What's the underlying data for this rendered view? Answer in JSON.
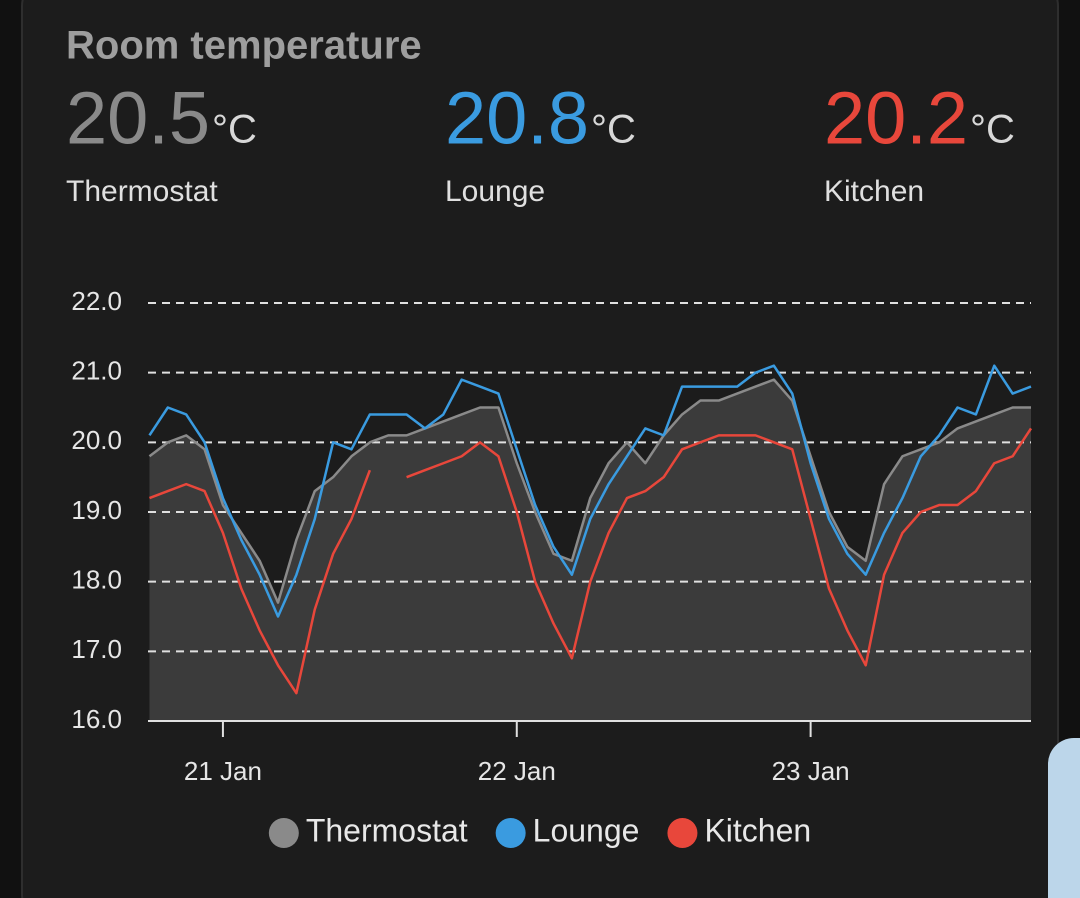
{
  "header": {
    "title": "Room temperature",
    "entities": [
      {
        "value": 20.5,
        "unit": "°C",
        "name": "Thermostat"
      },
      {
        "value": 20.8,
        "unit": "°C",
        "name": "Lounge"
      },
      {
        "value": 20.2,
        "unit": "°C",
        "name": "Kitchen"
      }
    ]
  },
  "chart_data": {
    "type": "line",
    "x": [
      20.75,
      20.8125,
      20.875,
      20.9375,
      21,
      21.0625,
      21.125,
      21.1875,
      21.25,
      21.3125,
      21.375,
      21.4375,
      21.5,
      21.5625,
      21.625,
      21.6875,
      21.75,
      21.8125,
      21.875,
      21.9375,
      22,
      22.0625,
      22.125,
      22.1875,
      22.25,
      22.3125,
      22.375,
      22.4375,
      22.5,
      22.5625,
      22.625,
      22.6875,
      22.75,
      22.8125,
      22.875,
      22.9375,
      23,
      23.0625,
      23.125,
      23.1875,
      23.25,
      23.3125,
      23.375,
      23.4375,
      23.5,
      23.5625,
      23.625,
      23.6875,
      23.75
    ],
    "series": [
      {
        "name": "Thermostat",
        "color": "#8a8a8a",
        "fill": "#3b3b3b",
        "values": [
          19.8,
          20.0,
          20.1,
          19.9,
          19.1,
          18.7,
          18.3,
          17.7,
          18.6,
          19.3,
          19.5,
          19.8,
          20.0,
          20.1,
          20.1,
          20.2,
          20.3,
          20.4,
          20.5,
          20.5,
          19.7,
          19.0,
          18.4,
          18.3,
          19.2,
          19.7,
          20.0,
          19.7,
          20.1,
          20.4,
          20.6,
          20.6,
          20.7,
          20.8,
          20.9,
          20.6,
          19.8,
          19.0,
          18.5,
          18.3,
          19.4,
          19.8,
          19.9,
          20.0,
          20.2,
          20.3,
          20.4,
          20.5,
          20.5
        ]
      },
      {
        "name": "Lounge",
        "color": "#3a9be0",
        "values": [
          20.1,
          20.5,
          20.4,
          20.0,
          19.2,
          18.6,
          18.1,
          17.5,
          18.1,
          18.9,
          20.0,
          19.9,
          20.4,
          20.4,
          20.4,
          20.2,
          20.4,
          20.9,
          20.8,
          20.7,
          19.9,
          19.1,
          18.5,
          18.1,
          18.9,
          19.4,
          19.8,
          20.2,
          20.1,
          20.8,
          20.8,
          20.8,
          20.8,
          21.0,
          21.1,
          20.7,
          19.7,
          18.9,
          18.4,
          18.1,
          18.7,
          19.2,
          19.8,
          20.1,
          20.5,
          20.4,
          21.1,
          20.7,
          20.8
        ]
      },
      {
        "name": "Kitchen",
        "color": "#e8473b",
        "values": [
          19.2,
          19.3,
          19.4,
          19.3,
          18.7,
          17.9,
          17.3,
          16.8,
          16.4,
          17.6,
          18.4,
          18.9,
          19.6,
          null,
          19.5,
          19.6,
          19.7,
          19.8,
          20.0,
          19.8,
          19.0,
          18.0,
          17.4,
          16.9,
          18.0,
          18.7,
          19.2,
          19.3,
          19.5,
          19.9,
          20.0,
          20.1,
          20.1,
          20.1,
          20.0,
          19.9,
          18.9,
          17.9,
          17.3,
          16.8,
          18.1,
          18.7,
          19.0,
          19.1,
          19.1,
          19.3,
          19.7,
          19.8,
          20.2
        ]
      }
    ],
    "xlim": [
      20.745,
      23.75
    ],
    "xticks": [
      {
        "value": 21,
        "label": "21 Jan"
      },
      {
        "value": 22,
        "label": "22 Jan"
      },
      {
        "value": 23,
        "label": "23 Jan"
      }
    ],
    "ylim": [
      16,
      22
    ],
    "yticks": [
      {
        "value": 16,
        "label": "16.0"
      },
      {
        "value": 17,
        "label": "17.0"
      },
      {
        "value": 18,
        "label": "18.0"
      },
      {
        "value": 19,
        "label": "19.0"
      },
      {
        "value": 20,
        "label": "20.0"
      },
      {
        "value": 21,
        "label": "21.0"
      },
      {
        "value": 22,
        "label": "22.0"
      }
    ],
    "grid": true
  }
}
